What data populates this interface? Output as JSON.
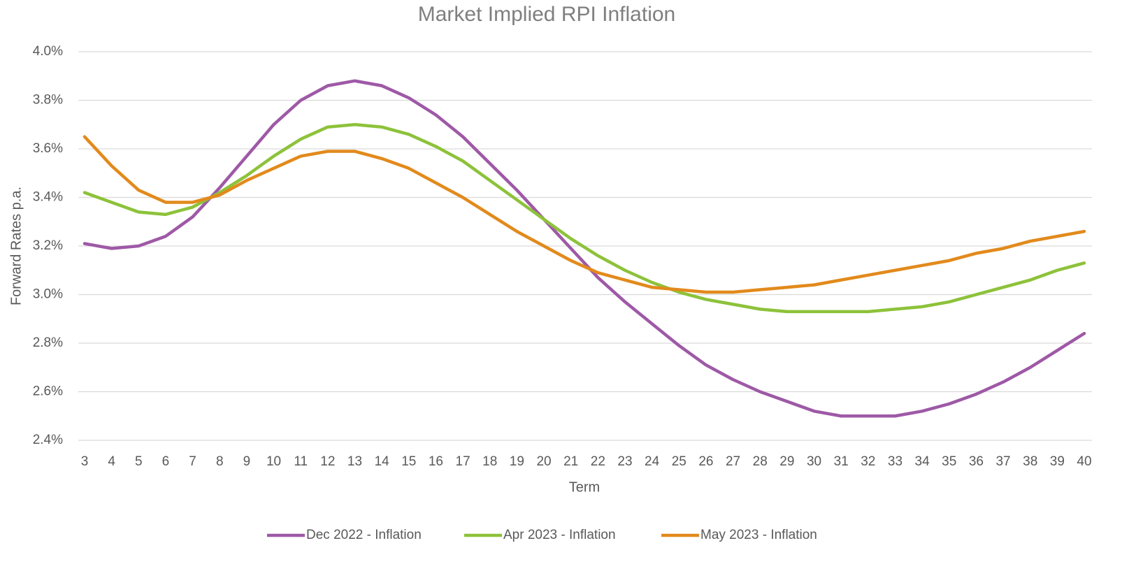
{
  "chart_data": {
    "type": "line",
    "title": "Market Implied RPI Inflation",
    "x_label": "Term",
    "y_label": "Forward Rates p.a.",
    "categories": [
      3,
      4,
      5,
      6,
      7,
      8,
      9,
      10,
      11,
      12,
      13,
      14,
      15,
      16,
      17,
      18,
      19,
      20,
      21,
      22,
      23,
      24,
      25,
      26,
      27,
      28,
      29,
      30,
      31,
      32,
      33,
      34,
      35,
      36,
      37,
      38,
      39,
      40
    ],
    "series": [
      {
        "name": "Dec 2022 - Inflation",
        "color": "#9e59a6",
        "values": [
          3.21,
          3.19,
          3.2,
          3.24,
          3.32,
          3.44,
          3.57,
          3.7,
          3.8,
          3.86,
          3.88,
          3.86,
          3.81,
          3.74,
          3.65,
          3.54,
          3.43,
          3.31,
          3.19,
          3.07,
          2.97,
          2.88,
          2.79,
          2.71,
          2.65,
          2.6,
          2.56,
          2.52,
          2.5,
          2.5,
          2.5,
          2.52,
          2.55,
          2.59,
          2.64,
          2.7,
          2.77,
          2.84
        ]
      },
      {
        "name": "Apr 2023 - Inflation",
        "color": "#8dc23a",
        "values": [
          3.42,
          3.38,
          3.34,
          3.33,
          3.36,
          3.42,
          3.49,
          3.57,
          3.64,
          3.69,
          3.7,
          3.69,
          3.66,
          3.61,
          3.55,
          3.47,
          3.39,
          3.31,
          3.23,
          3.16,
          3.1,
          3.05,
          3.01,
          2.98,
          2.96,
          2.94,
          2.93,
          2.93,
          2.93,
          2.93,
          2.94,
          2.95,
          2.97,
          3.0,
          3.03,
          3.06,
          3.1,
          3.13
        ]
      },
      {
        "name": "May 2023 - Inflation",
        "color": "#e28a1c",
        "values": [
          3.65,
          3.53,
          3.43,
          3.38,
          3.38,
          3.41,
          3.47,
          3.52,
          3.57,
          3.59,
          3.59,
          3.56,
          3.52,
          3.46,
          3.4,
          3.33,
          3.26,
          3.2,
          3.14,
          3.09,
          3.06,
          3.03,
          3.02,
          3.01,
          3.01,
          3.02,
          3.03,
          3.04,
          3.06,
          3.08,
          3.1,
          3.12,
          3.14,
          3.17,
          3.19,
          3.22,
          3.24,
          3.26
        ]
      }
    ],
    "ylim": [
      2.4,
      4.0
    ],
    "yticks": [
      {
        "value": 2.4,
        "label": "2.4%"
      },
      {
        "value": 2.6,
        "label": "2.6%"
      },
      {
        "value": 2.8,
        "label": "2.8%"
      },
      {
        "value": 3.0,
        "label": "3.0%"
      },
      {
        "value": 3.2,
        "label": "3.2%"
      },
      {
        "value": 3.4,
        "label": "3.4%"
      },
      {
        "value": 3.6,
        "label": "3.6%"
      },
      {
        "value": 3.8,
        "label": "3.8%"
      },
      {
        "value": 4.0,
        "label": "4.0%"
      }
    ],
    "grid": true,
    "legend": "bottom"
  }
}
